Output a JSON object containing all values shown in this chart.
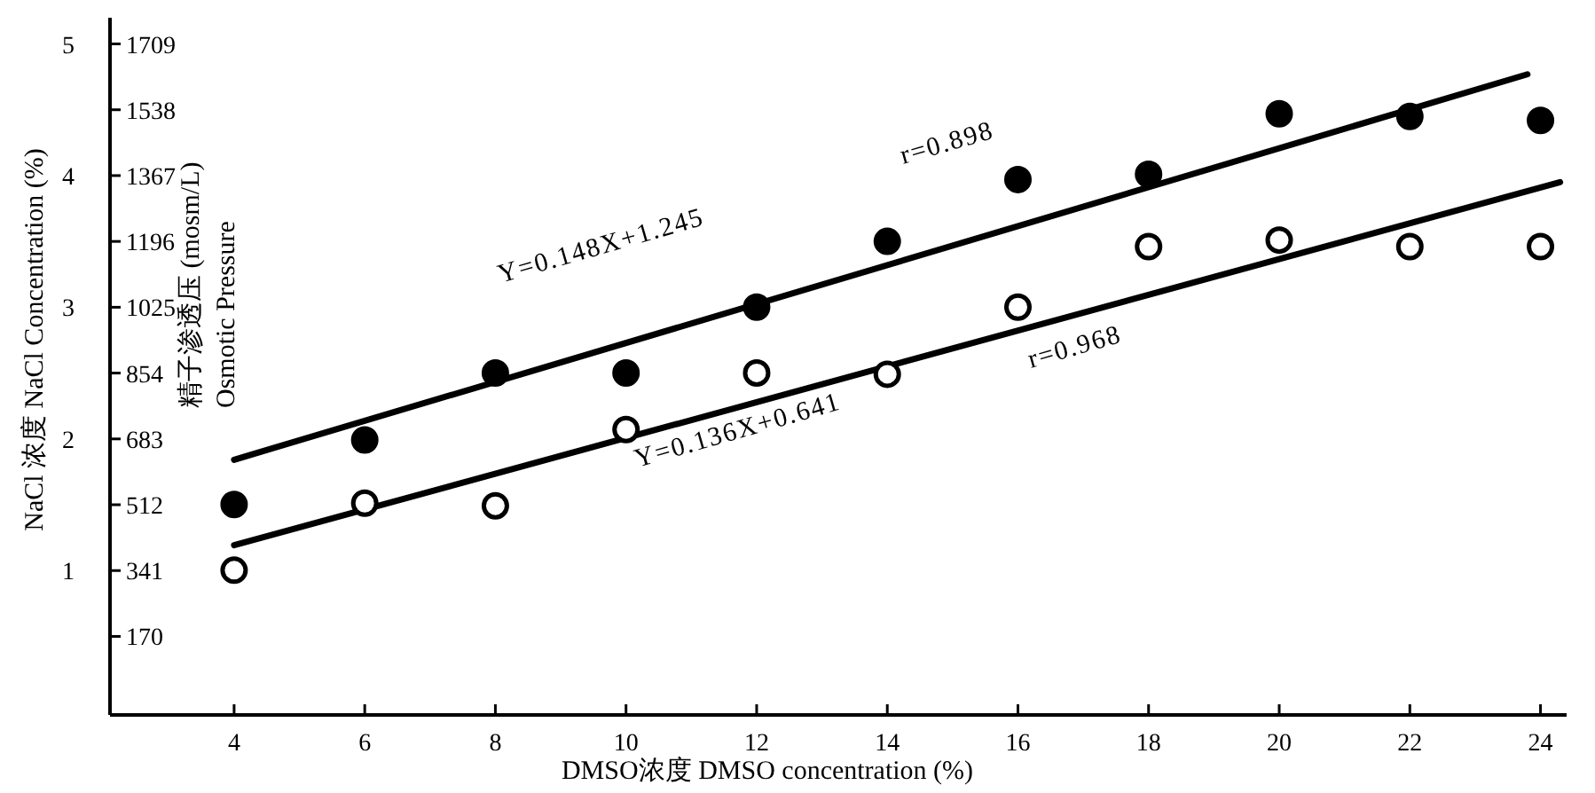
{
  "chart_data": {
    "type": "scatter",
    "xlabel": "DMSO浓度  DMSO concentration (%)",
    "ylabel": "NaCl 浓度  NaCl Concentration (%)",
    "y2label": "精子渗透压 (mosm/L)\nOsmotic Pressure",
    "x": [
      4,
      6,
      8,
      10,
      12,
      14,
      16,
      18,
      20,
      22,
      24
    ],
    "series": [
      {
        "color": "#000000",
        "marker": "circle",
        "values": [
          1.5,
          1.99,
          2.5,
          2.5,
          3.0,
          3.5,
          3.97,
          4.01,
          4.47,
          4.45,
          4.42
        ]
      },
      {
        "color": "#ffffff",
        "marker": "circle",
        "values": [
          1.0,
          1.51,
          1.49,
          2.07,
          2.5,
          2.49,
          3.0,
          3.46,
          3.51,
          3.46,
          3.46
        ]
      },
      {
        "type": "line",
        "color": "#000000",
        "x": [
          4,
          23.8
        ],
        "values": [
          1.84,
          4.77
        ]
      },
      {
        "type": "line",
        "color": "#000000",
        "x": [
          4,
          24.3
        ],
        "values": [
          1.19,
          3.95
        ]
      }
    ],
    "annotations": [
      "Y=0.148X+1.245",
      "r=0.898",
      "Y=0.136X+0.641",
      "r=0.968"
    ],
    "xlim": [
      2.1,
      24.4
    ],
    "xticks": [
      4,
      6,
      8,
      10,
      12,
      14,
      16,
      18,
      20,
      22,
      24
    ],
    "ylim": [
      -0.1,
      5.2
    ],
    "yticks": [
      1,
      2,
      3,
      4,
      5
    ],
    "y2lim": [
      -34,
      1777
    ],
    "y2ticks": [
      170,
      341,
      512,
      683,
      854,
      1025,
      1196,
      1367,
      1538,
      1709
    ]
  }
}
